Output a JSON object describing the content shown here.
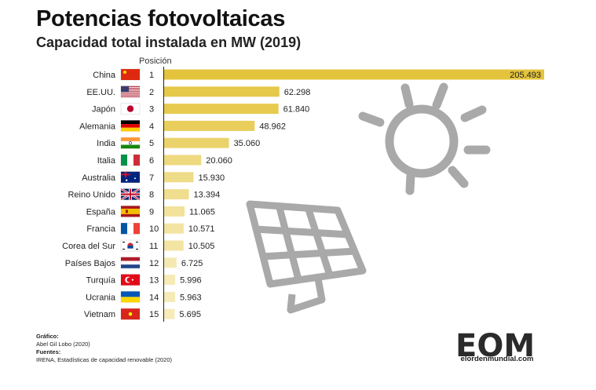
{
  "header": {
    "title": "Potencias fotovoltaicas",
    "subtitle": "Capacidad total instalada en MW (2019)",
    "position_label": "Posición"
  },
  "chart_data": {
    "type": "bar",
    "orientation": "horizontal",
    "title": "Potencias fotovoltaicas",
    "subtitle": "Capacidad total instalada en MW (2019)",
    "categories": [
      "China",
      "EE.UU.",
      "Japón",
      "Alemania",
      "India",
      "Italia",
      "Australia",
      "Reino Unido",
      "España",
      "Francia",
      "Corea del Sur",
      "Países Bajos",
      "Turquía",
      "Ucrania",
      "Vietnam"
    ],
    "positions": [
      "1",
      "2",
      "3",
      "4",
      "5",
      "6",
      "7",
      "8",
      "9",
      "10",
      "11",
      "12",
      "13",
      "14",
      "15"
    ],
    "values": [
      205493,
      62298,
      61840,
      48962,
      35060,
      20060,
      15930,
      13394,
      11065,
      10571,
      10505,
      6725,
      5996,
      5963,
      5695
    ],
    "value_labels": [
      "205.493",
      "62.298",
      "61.840",
      "48.962",
      "35.060",
      "20.060",
      "15.930",
      "13.394",
      "11.065",
      "10.571",
      "10.505",
      "6.725",
      "5.996",
      "5.963",
      "5.695"
    ],
    "bar_colors": [
      "#e4c43d",
      "#e6c84a",
      "#e7ca50",
      "#e9ce5c",
      "#ebd36c",
      "#eed97e",
      "#efdc88",
      "#f0de8f",
      "#f2e29c",
      "#f3e4a2",
      "#f3e4a3",
      "#f5e9b3",
      "#f6eab7",
      "#f6eab7",
      "#f6ebb9"
    ],
    "flags": [
      "china",
      "usa",
      "japan",
      "germany",
      "india",
      "italy",
      "australia",
      "uk",
      "spain",
      "france",
      "south-korea",
      "netherlands",
      "turkey",
      "ukraine",
      "vietnam"
    ],
    "grid": false
  },
  "credits": {
    "graphic_label": "Gráfico:",
    "graphic_author": "Abel Gil Lobo (2020)",
    "sources_label": "Fuentes:",
    "sources": "IRENA, Estadísticas de capacidad renovable (2020)"
  },
  "logo": {
    "letters": "EOM",
    "site": "elordenmundial.com"
  }
}
